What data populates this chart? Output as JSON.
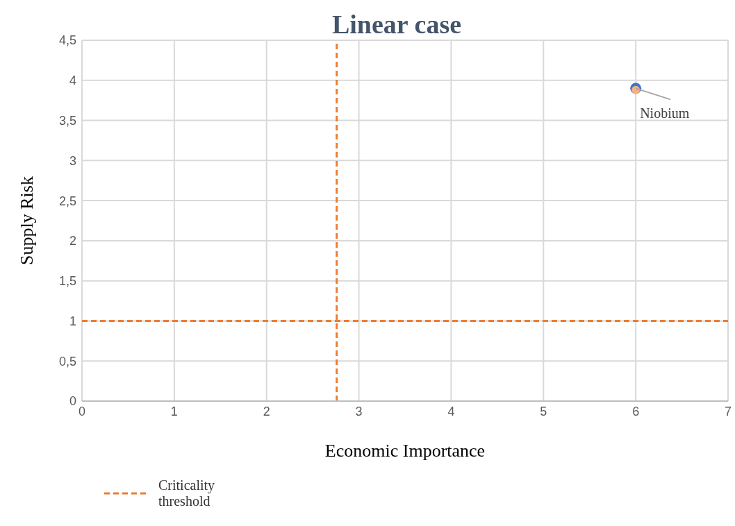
{
  "chart_data": {
    "type": "scatter",
    "title": "Linear case",
    "xlabel": "Economic Importance",
    "ylabel": "Supply Risk",
    "series": [
      {
        "color": "#4472c4",
        "x": [
          6
        ],
        "values": [
          3.9
        ]
      },
      {
        "color": "#f4b183",
        "x": [
          6
        ],
        "values": [
          3.88
        ]
      }
    ],
    "annotations": [
      {
        "text": "Niobium",
        "x": 6,
        "y": 3.9
      }
    ],
    "ref_lines": [
      {
        "axis": "x",
        "value": 2.76,
        "label": "Criticality threshold",
        "color": "#ed7d31",
        "line_style": "dashed"
      },
      {
        "axis": "y",
        "value": 1,
        "color": "#ed7d31",
        "line_style": "dashed"
      }
    ],
    "xlim": [
      0,
      7
    ],
    "xticks": [
      0,
      1,
      2,
      3,
      4,
      5,
      6,
      7
    ],
    "ylim": [
      0,
      4.5
    ],
    "yticks": [
      0,
      {
        "value": 0.5,
        "label": "0,5"
      },
      1,
      {
        "value": 1.5,
        "label": "1,5"
      },
      2,
      {
        "value": 2.5,
        "label": "2,5"
      },
      3,
      {
        "value": 3.5,
        "label": "3,5"
      },
      4,
      {
        "value": 4.5,
        "label": "4,5"
      }
    ],
    "grid": true,
    "legend": "bottom left",
    "marker": "circle"
  }
}
